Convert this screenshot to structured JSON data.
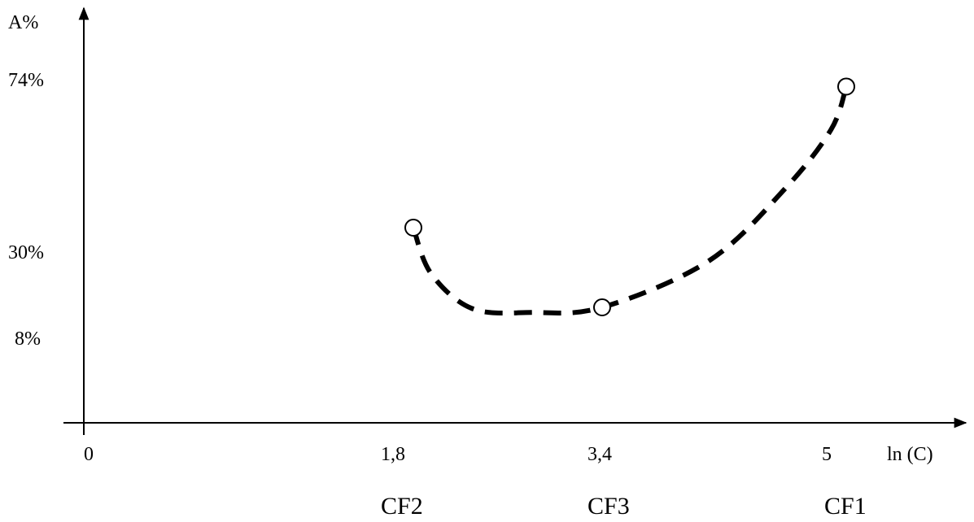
{
  "chart_data": {
    "type": "line",
    "title": "",
    "xlabel": "ln (C)",
    "ylabel": "A%",
    "x_ticks": [
      "0",
      "1,8",
      "3,4",
      "5"
    ],
    "y_ticks": [
      "8%",
      "30%",
      "74%"
    ],
    "points": [
      {
        "x": 1.8,
        "y": 35,
        "label": "CF2"
      },
      {
        "x": 3.4,
        "y": 15,
        "label": "CF3"
      },
      {
        "x": 5,
        "y": 71,
        "label": "CF1"
      }
    ],
    "curve": [
      {
        "x": 1.8,
        "y": 35
      },
      {
        "x": 1.95,
        "y": 23
      },
      {
        "x": 2.3,
        "y": 14.5
      },
      {
        "x": 2.8,
        "y": 13
      },
      {
        "x": 3.4,
        "y": 15
      },
      {
        "x": 4.1,
        "y": 26
      },
      {
        "x": 4.6,
        "y": 45
      },
      {
        "x": 4.9,
        "y": 60
      },
      {
        "x": 5,
        "y": 71
      }
    ],
    "line_style": "dashed",
    "marker": "open-circle",
    "colors": {
      "line": "#000000",
      "marker_fill": "#ffffff"
    }
  }
}
